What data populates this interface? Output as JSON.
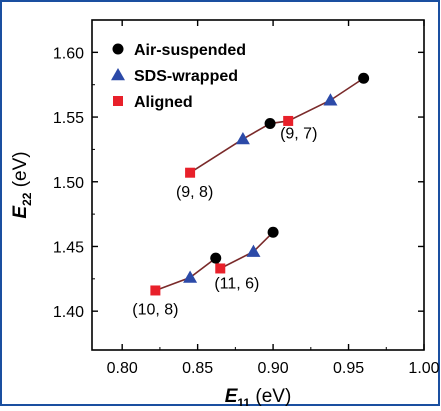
{
  "chart_data": {
    "type": "scatter",
    "xlabel": {
      "main": "E",
      "sub": "11",
      "unit": " (eV)"
    },
    "ylabel": {
      "main": "E",
      "sub": "22",
      "unit": " (eV)"
    },
    "xlim": [
      0.78,
      1.0
    ],
    "ylim": [
      1.37,
      1.625
    ],
    "x_ticks": [
      0.8,
      0.85,
      0.9,
      0.95,
      1.0
    ],
    "x_tick_labels": [
      "0.80",
      "0.85",
      "0.90",
      "0.95",
      "1.00"
    ],
    "y_ticks": [
      1.4,
      1.45,
      1.5,
      1.55,
      1.6
    ],
    "y_tick_labels": [
      "1.40",
      "1.45",
      "1.50",
      "1.55",
      "1.60"
    ],
    "grid": false,
    "legend_position": "top-left",
    "colors": {
      "line": "#7a2a2a",
      "axis": "#000000",
      "frame": "#1a4fa0"
    },
    "series": [
      {
        "name": "Air-suspended",
        "marker": "circle",
        "color": "#000000",
        "points": [
          {
            "x": 0.96,
            "y": 1.58
          },
          {
            "x": 0.898,
            "y": 1.545
          },
          {
            "x": 0.862,
            "y": 1.441
          },
          {
            "x": 0.9,
            "y": 1.461
          }
        ]
      },
      {
        "name": "SDS-wrapped",
        "marker": "triangle",
        "color": "#2c4aa8",
        "points": [
          {
            "x": 0.938,
            "y": 1.563
          },
          {
            "x": 0.88,
            "y": 1.533
          },
          {
            "x": 0.845,
            "y": 1.426
          },
          {
            "x": 0.887,
            "y": 1.446
          }
        ]
      },
      {
        "name": "Aligned",
        "marker": "square",
        "color": "#e8202a",
        "points": [
          {
            "x": 0.91,
            "y": 1.547
          },
          {
            "x": 0.845,
            "y": 1.507
          },
          {
            "x": 0.822,
            "y": 1.416
          },
          {
            "x": 0.865,
            "y": 1.433
          }
        ]
      }
    ],
    "connector_lines": [
      [
        {
          "x": 0.845,
          "y": 1.507
        },
        {
          "x": 0.88,
          "y": 1.533
        },
        {
          "x": 0.898,
          "y": 1.545
        },
        {
          "x": 0.91,
          "y": 1.547
        },
        {
          "x": 0.938,
          "y": 1.563
        },
        {
          "x": 0.96,
          "y": 1.58
        }
      ],
      [
        {
          "x": 0.822,
          "y": 1.416
        },
        {
          "x": 0.845,
          "y": 1.426
        },
        {
          "x": 0.862,
          "y": 1.441
        },
        {
          "x": 0.865,
          "y": 1.433
        },
        {
          "x": 0.887,
          "y": 1.446
        },
        {
          "x": 0.9,
          "y": 1.461
        }
      ]
    ],
    "annotations": [
      {
        "text": "(9, 7)",
        "x": 0.917,
        "y": 1.538
      },
      {
        "text": "(9, 8)",
        "x": 0.848,
        "y": 1.493
      },
      {
        "text": "(11, 6)",
        "x": 0.876,
        "y": 1.422
      },
      {
        "text": "(10, 8)",
        "x": 0.822,
        "y": 1.402
      }
    ]
  }
}
